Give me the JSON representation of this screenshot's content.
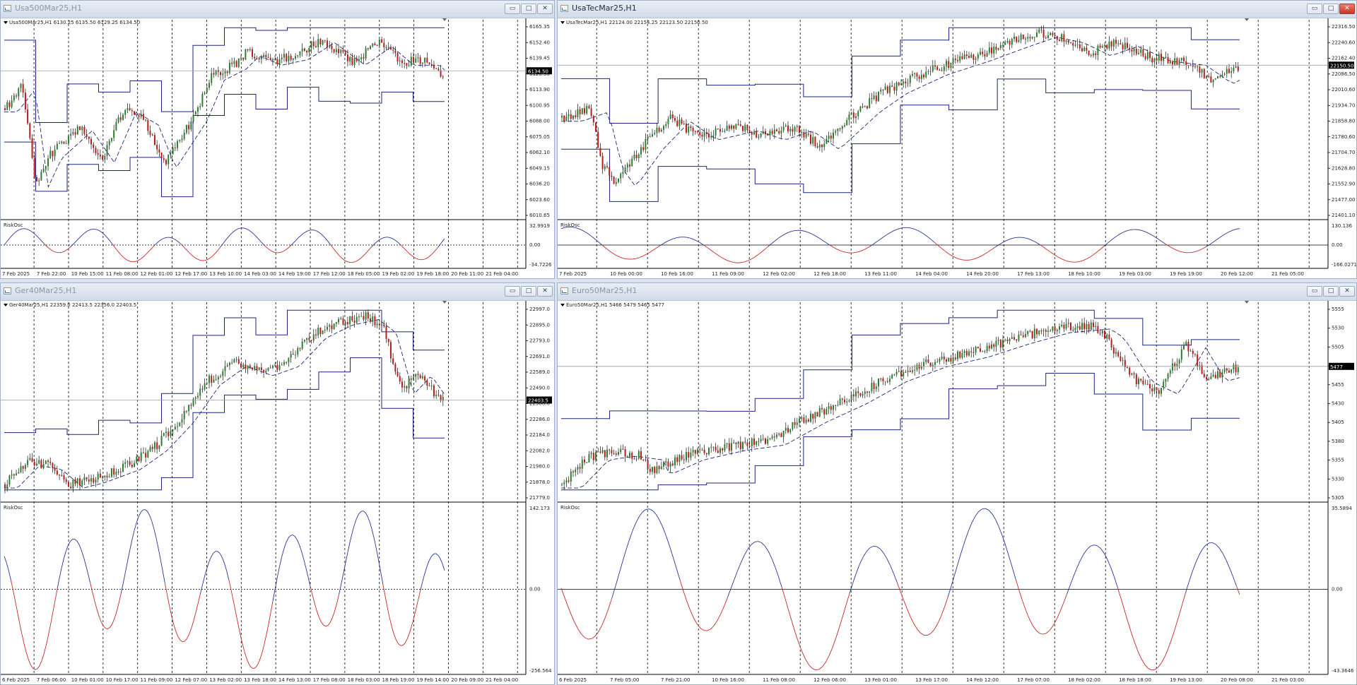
{
  "windows": [
    {
      "id": "usa500",
      "title": "Usa500Mar25,H1",
      "active": false,
      "info": "Usa500Mar25,H1  6130.25 6135.50 6129.25 6134.50",
      "price_labels": [
        "6165.35",
        "6152.40",
        "6139.45",
        "6126.50",
        "6113.90",
        "6100.95",
        "6088.00",
        "6075.05",
        "6062.10",
        "6049.15",
        "6036.20",
        "6023.60",
        "6010.65"
      ],
      "current_price": "6134.50",
      "indicator_name": "RiskOsc",
      "osc_labels": [
        "32.9919",
        "0.00",
        "-34.7226"
      ],
      "time_labels": [
        "7 Feb 2025",
        "7 Feb 22:00",
        "10 Feb 15:00",
        "11 Feb 08:00",
        "12 Feb 01:00",
        "12 Feb 17:00",
        "13 Feb 10:00",
        "14 Feb 03:00",
        "14 Feb 19:00",
        "17 Feb 12:00",
        "18 Feb 05:00",
        "19 Feb 02:00",
        "19 Feb 18:00",
        "20 Feb 11:00",
        "21 Feb 04:00"
      ]
    },
    {
      "id": "usatec",
      "title": "UsaTecMar25,H1",
      "active": true,
      "info": "UsaTecMar25,H1  22124.00 22154.25 22123.50 22150.50",
      "price_labels": [
        "22316.50",
        "22240.60",
        "22162.40",
        "22086.50",
        "22010.60",
        "21934.70",
        "21858.80",
        "21780.60",
        "21704.70",
        "21628.80",
        "21552.90",
        "21477.00",
        "21401.10"
      ],
      "current_price": "22150.50",
      "indicator_name": "RiskOsc",
      "osc_labels": [
        "130.136",
        "0.00",
        "-166.0271"
      ],
      "time_labels": [
        "7 Feb 2025",
        "10 Feb 00:00",
        "10 Feb 16:00",
        "11 Feb 09:00",
        "12 Feb 02:00",
        "12 Feb 18:00",
        "13 Feb 11:00",
        "14 Feb 04:00",
        "14 Feb 20:00",
        "17 Feb 13:00",
        "18 Feb 10:00",
        "19 Feb 03:00",
        "19 Feb 19:00",
        "20 Feb 12:00",
        "21 Feb 05:00"
      ]
    },
    {
      "id": "ger40",
      "title": "Ger40Mar25,H1",
      "active": false,
      "info": "Ger40Mar25,H1  22359.0 22413.5 22356.0 22403.5",
      "price_labels": [
        "22997.0",
        "22895.0",
        "22793.0",
        "22691.0",
        "22589.0",
        "22490.0",
        "22388.0",
        "22286.0",
        "22184.0",
        "22082.0",
        "21980.0",
        "21878.0",
        "21779.0"
      ],
      "current_price": "22403.5",
      "indicator_name": "RiskOsc",
      "osc_labels": [
        "142.173",
        "0.00",
        "-256.564"
      ],
      "time_labels": [
        "6 Feb 2025",
        "7 Feb 06:00",
        "10 Feb 01:00",
        "10 Feb 17:00",
        "11 Feb 09:00",
        "12 Feb 07:00",
        "13 Feb 02:00",
        "13 Feb 18:00",
        "14 Feb 13:00",
        "17 Feb 08:00",
        "18 Feb 03:00",
        "18 Feb 19:00",
        "19 Feb 14:00",
        "20 Feb 09:00",
        "21 Feb 04:00"
      ]
    },
    {
      "id": "euro50",
      "title": "Euro50Mar25,H1",
      "active": false,
      "info": "Euro50Mar25,H1  5466 5479 5465 5477",
      "price_labels": [
        "5555",
        "5530",
        "5505",
        "5480",
        "5455",
        "5430",
        "5405",
        "5380",
        "5355",
        "5330",
        "5305"
      ],
      "current_price": "5477",
      "indicator_name": "RiskOsc",
      "osc_labels": [
        "35.5894",
        "0.00",
        "-43.3646"
      ],
      "time_labels": [
        "6 Feb 2025",
        "7 Feb 05:00",
        "7 Feb 21:00",
        "10 Feb 16:00",
        "11 Feb 08:00",
        "12 Feb 06:00",
        "13 Feb 01:00",
        "13 Feb 17:00",
        "14 Feb 12:00",
        "17 Feb 07:00",
        "18 Feb 02:00",
        "18 Feb 18:00",
        "19 Feb 13:00",
        "20 Feb 08:00",
        "21 Feb 03:00"
      ]
    }
  ],
  "window_controls": {
    "minimize": "▭",
    "maximize": "□",
    "close": "✕"
  },
  "colors": {
    "bull_candle": "#2e7d32",
    "bear_candle": "#b71c1c",
    "channel_line": "#1a237e",
    "ma_line": "#1a237e",
    "osc_up": "#283593",
    "osc_down": "#c62828",
    "price_line": "#9e9e9e",
    "grid": "#000000"
  }
}
